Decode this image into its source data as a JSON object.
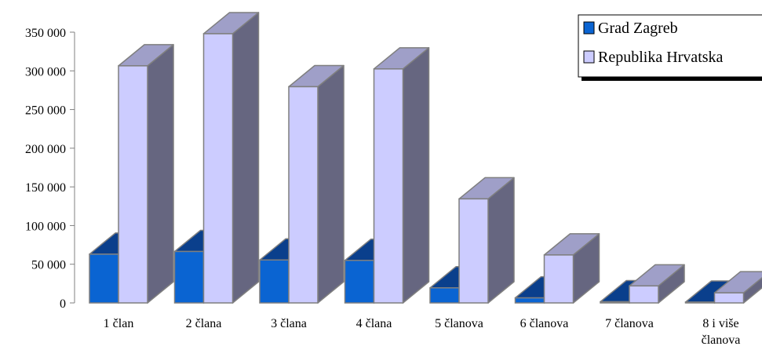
{
  "chart_data": {
    "type": "bar",
    "style": "3d-column",
    "categories": [
      "1 član",
      "2 člana",
      "3 člana",
      "4 člana",
      "5 članova",
      "6 članova",
      "7 članova",
      "8 i više članova"
    ],
    "category_lines": [
      [
        "1 član"
      ],
      [
        "2 člana"
      ],
      [
        "3 člana"
      ],
      [
        "4 člana"
      ],
      [
        "5 članova"
      ],
      [
        "6 članova"
      ],
      [
        "7 članova"
      ],
      [
        "8 i više",
        "članova"
      ]
    ],
    "series": [
      {
        "name": "Grad Zagreb",
        "values": [
          63000,
          66500,
          55500,
          55000,
          19500,
          6500,
          1500,
          1000
        ]
      },
      {
        "name": "Republika Hrvatska",
        "values": [
          306500,
          348000,
          279500,
          302500,
          134500,
          62000,
          22000,
          13000
        ]
      }
    ],
    "yticks": [
      "0",
      "50 000",
      "100 000",
      "150 000",
      "200 000",
      "250 000",
      "300 000",
      "350 000"
    ],
    "ylim": [
      0,
      350000
    ],
    "legend_position": "top-right",
    "grid": false,
    "colors": {
      "zagreb_front": "#0a64d2",
      "zagreb_top": "#0a3f8c",
      "zagreb_side": "#06326e",
      "hrvatska_front": "#ccccff",
      "hrvatska_top": "#9f9fc8",
      "hrvatska_side": "#666680",
      "edge": "#7f7f7f"
    }
  }
}
